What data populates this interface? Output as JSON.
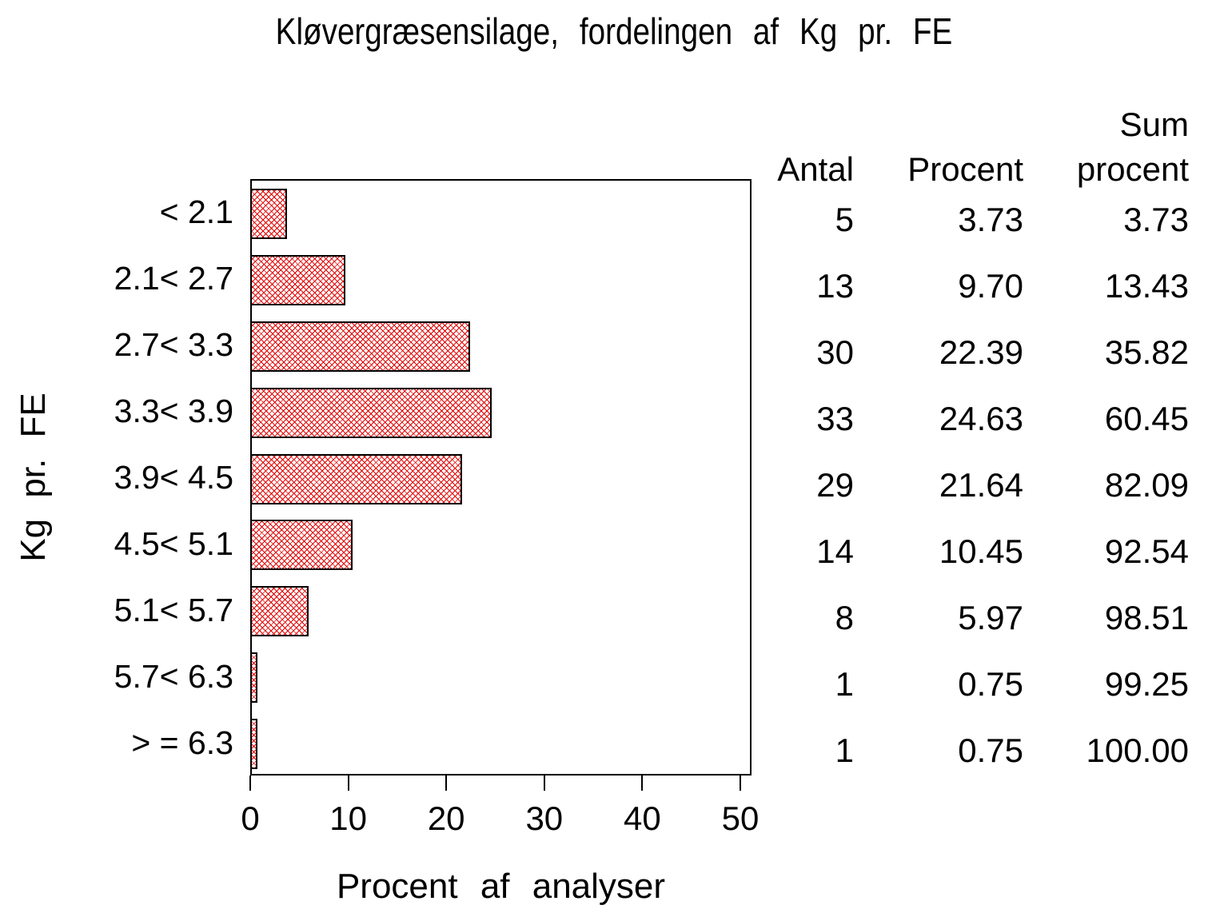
{
  "title": "Kløvergræsensilage, fordelingen af Kg pr. FE",
  "chart_data": {
    "type": "bar",
    "orientation": "horizontal",
    "title": "Kløvergræsensilage, fordelingen af Kg pr. FE",
    "categories": [
      "< 2.1",
      "2.1< 2.7",
      "2.7< 3.3",
      "3.3< 3.9",
      "3.9< 4.5",
      "4.5< 5.1",
      "5.1< 5.7",
      "5.7< 6.3",
      "> = 6.3"
    ],
    "series": [
      {
        "name": "Antal",
        "values": [
          5,
          13,
          30,
          33,
          29,
          14,
          8,
          1,
          1
        ]
      },
      {
        "name": "Procent",
        "values": [
          3.73,
          9.7,
          22.39,
          24.63,
          21.64,
          10.45,
          5.97,
          0.75,
          0.75
        ]
      },
      {
        "name": "Sum procent",
        "values": [
          3.73,
          13.43,
          35.82,
          60.45,
          82.09,
          92.54,
          98.51,
          99.25,
          100.0
        ]
      }
    ],
    "bar_series": "Procent",
    "xlabel": "Procent af analyser",
    "ylabel": "Kg pr. FE",
    "xlim": [
      0,
      50
    ],
    "xtick_labels": [
      "0",
      "10",
      "20",
      "30",
      "40",
      "50"
    ],
    "xtick_values": [
      0,
      10,
      20,
      30,
      40,
      50
    ],
    "grid": false,
    "frame": true,
    "bar_pattern": "red-crosshatch",
    "bar_pattern_color": "#e00000",
    "bar_border_color": "#000000",
    "background_color": "#ffffff",
    "text_color": "#000000"
  },
  "table": {
    "header_antal": "Antal",
    "header_procent": "Procent",
    "header_sum_line1": "Sum",
    "header_sum_line2": "procent",
    "rows": [
      {
        "antal": "5",
        "procent": "3.73",
        "sum": "3.73"
      },
      {
        "antal": "13",
        "procent": "9.70",
        "sum": "13.43"
      },
      {
        "antal": "30",
        "procent": "22.39",
        "sum": "35.82"
      },
      {
        "antal": "33",
        "procent": "24.63",
        "sum": "60.45"
      },
      {
        "antal": "29",
        "procent": "21.64",
        "sum": "82.09"
      },
      {
        "antal": "14",
        "procent": "10.45",
        "sum": "92.54"
      },
      {
        "antal": "8",
        "procent": "5.97",
        "sum": "98.51"
      },
      {
        "antal": "1",
        "procent": "0.75",
        "sum": "99.25"
      },
      {
        "antal": "1",
        "procent": "0.75",
        "sum": "100.00"
      }
    ]
  }
}
